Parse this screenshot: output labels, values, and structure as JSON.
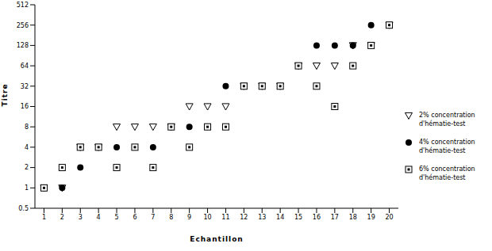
{
  "chart_data": {
    "type": "scatter",
    "x_label": "Echantillon",
    "y_label": "Titre",
    "x": [
      1,
      2,
      3,
      4,
      5,
      6,
      7,
      8,
      9,
      10,
      11,
      12,
      13,
      14,
      15,
      16,
      17,
      18,
      19,
      20
    ],
    "xlim": [
      0.5,
      20.5
    ],
    "xticks": [
      1,
      2,
      3,
      4,
      5,
      6,
      7,
      8,
      9,
      10,
      11,
      12,
      13,
      14,
      15,
      16,
      17,
      18,
      19,
      20
    ],
    "ylim": [
      0.5,
      512
    ],
    "yticks": [
      0.5,
      1,
      2,
      4,
      8,
      16,
      32,
      64,
      128,
      256,
      512
    ],
    "log": "y",
    "grid": false,
    "legend": "right",
    "series": [
      {
        "name": "2% concentration d'hématie-test",
        "color": "#000000",
        "marker": "triangle-down",
        "values": [
          1,
          1,
          4,
          4,
          8,
          8,
          8,
          8,
          16,
          16,
          16,
          32,
          32,
          32,
          64,
          64,
          64,
          128,
          128,
          256
        ]
      },
      {
        "name": "4% concentration d'hématie-test",
        "color": "#000000",
        "marker": "circle",
        "values": [
          1,
          1,
          2,
          4,
          4,
          4,
          4,
          8,
          8,
          8,
          32,
          32,
          32,
          32,
          64,
          128,
          128,
          128,
          256,
          256
        ]
      },
      {
        "name": "6% concentration d'hématie-test",
        "color": "#000000",
        "marker": "square-dot",
        "values": [
          1,
          2,
          4,
          4,
          2,
          4,
          2,
          8,
          4,
          8,
          8,
          32,
          32,
          32,
          64,
          32,
          16,
          64,
          128,
          256
        ]
      }
    ]
  }
}
